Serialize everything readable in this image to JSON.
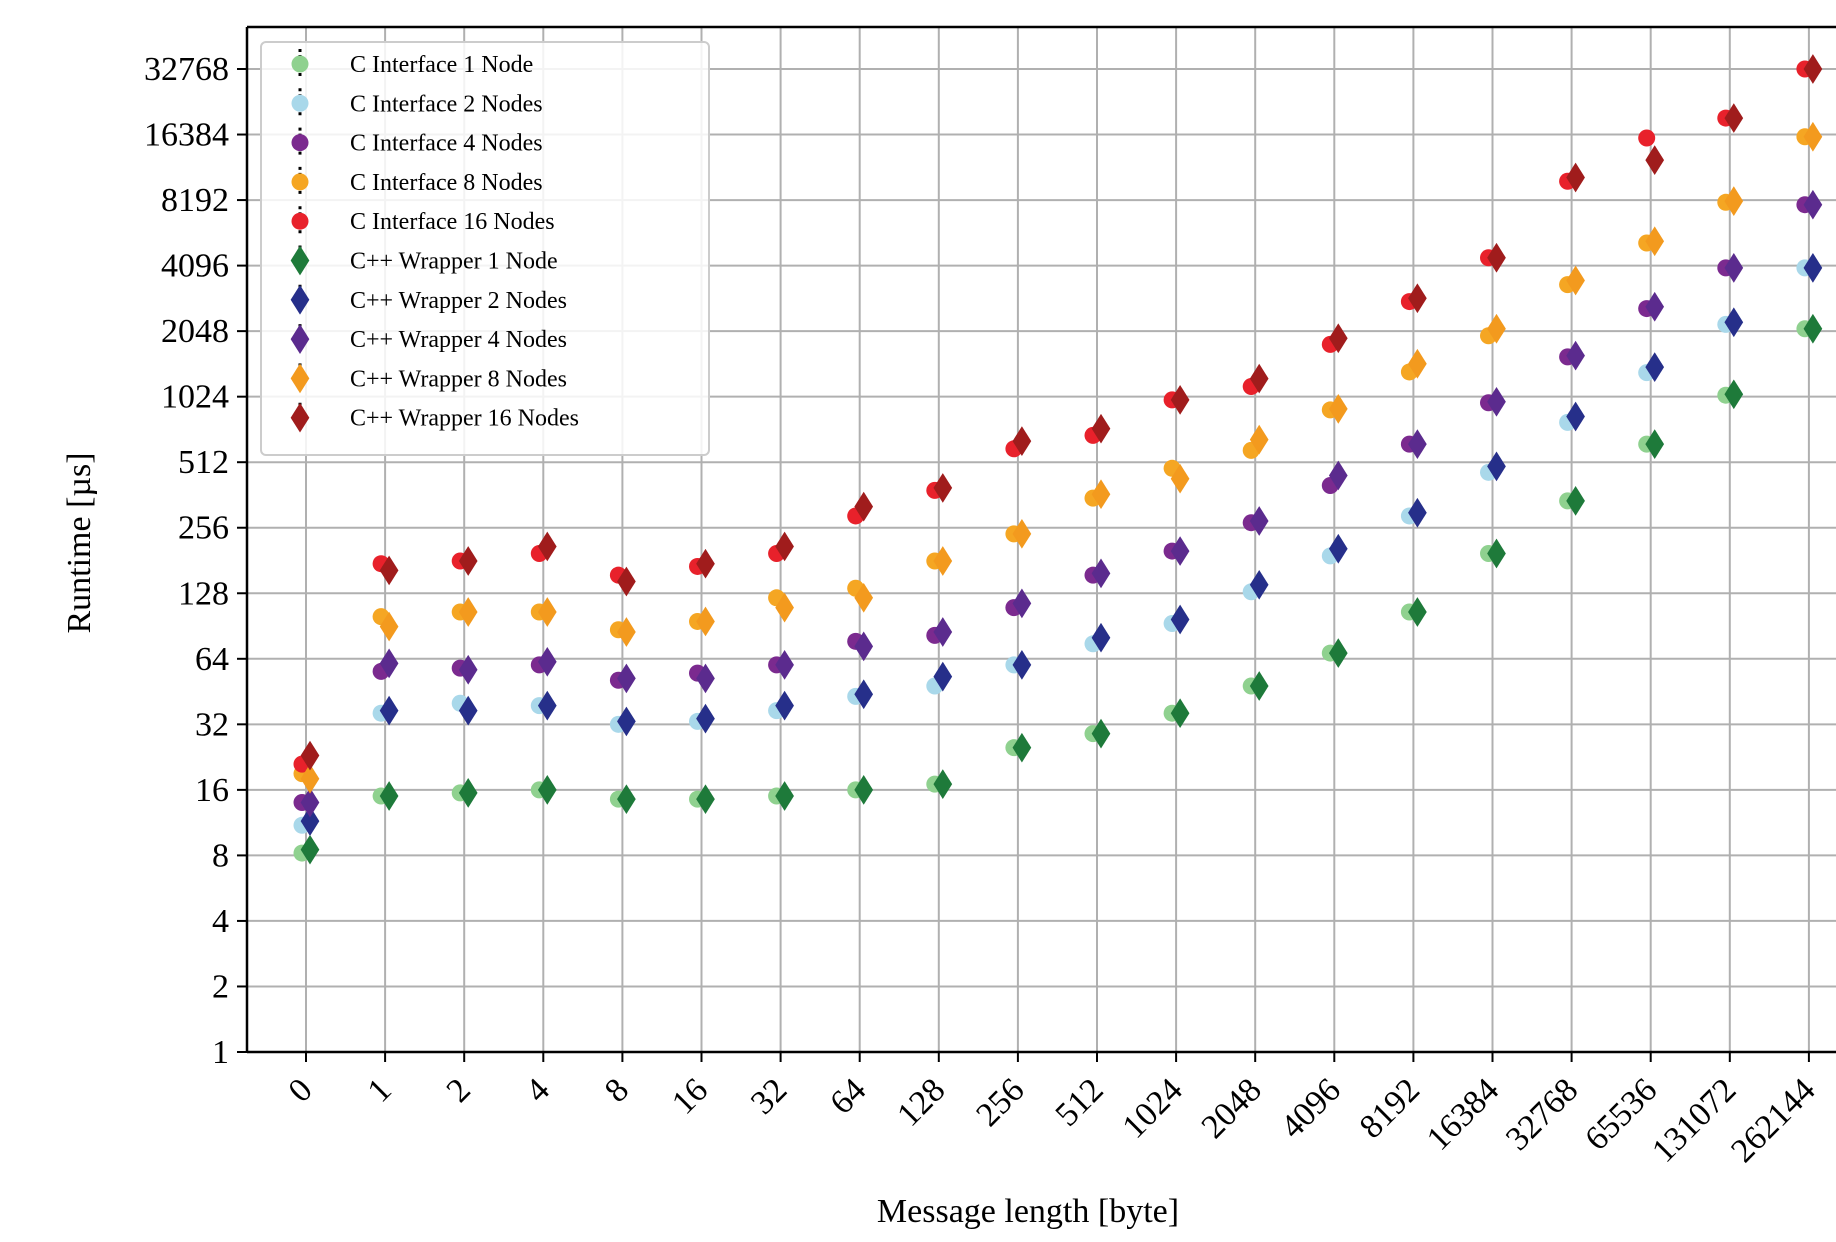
{
  "chart_data": {
    "type": "scatter",
    "xlabel": "Message length [byte]",
    "ylabel": "Runtime [µs]",
    "yscale": "log2",
    "ylim": [
      1,
      32768
    ],
    "grid": true,
    "legend_position": "top-left",
    "categories": [
      "0",
      "1",
      "2",
      "4",
      "8",
      "16",
      "32",
      "64",
      "128",
      "256",
      "512",
      "1024",
      "2048",
      "4096",
      "8192",
      "16384",
      "32768",
      "65536",
      "131072",
      "262144"
    ],
    "yticks": [
      1,
      2,
      4,
      8,
      16,
      32,
      64,
      128,
      256,
      512,
      1024,
      2048,
      4096,
      8192,
      16384,
      32768
    ],
    "series": [
      {
        "name": "C Interface 1 Node",
        "marker": "circle",
        "color": "#8fd18f",
        "values": [
          8.2,
          15,
          15.5,
          16,
          14.5,
          14.5,
          15,
          16,
          17,
          25,
          29,
          36,
          48,
          68,
          105,
          195,
          340,
          620,
          1040,
          2100
        ]
      },
      {
        "name": "C Interface 2 Nodes",
        "marker": "circle",
        "color": "#a9d8ea",
        "values": [
          11,
          36,
          40,
          39,
          32,
          33,
          37,
          43,
          48,
          60,
          75,
          93,
          130,
          190,
          290,
          460,
          780,
          1320,
          2200,
          4000
        ]
      },
      {
        "name": "C Interface 4 Nodes",
        "marker": "circle",
        "color": "#7b2a8f",
        "values": [
          14,
          56,
          58,
          60,
          51,
          55,
          60,
          77,
          82,
          110,
          155,
          200,
          270,
          400,
          620,
          960,
          1560,
          2600,
          4000,
          7800
        ]
      },
      {
        "name": "C Interface 8 Nodes",
        "marker": "circle",
        "color": "#f5a623",
        "values": [
          19,
          100,
          105,
          105,
          87,
          95,
          122,
          135,
          180,
          240,
          350,
          480,
          580,
          890,
          1330,
          1950,
          3350,
          5200,
          8000,
          16000
        ]
      },
      {
        "name": "C Interface 16 Nodes",
        "marker": "circle",
        "color": "#e8212b",
        "values": [
          21,
          175,
          180,
          195,
          155,
          170,
          195,
          290,
          380,
          590,
          680,
          990,
          1140,
          1780,
          2800,
          4450,
          10000,
          15800,
          19500,
          32768
        ]
      },
      {
        "name": "C++ Wrapper 1 Node",
        "marker": "diamond",
        "color": "#1e7a3a",
        "values": [
          8.5,
          15,
          15.5,
          16,
          14.5,
          14.5,
          15,
          16,
          17,
          25,
          29,
          36,
          48,
          68,
          105,
          195,
          340,
          620,
          1050,
          2100
        ]
      },
      {
        "name": "C++ Wrapper 2 Nodes",
        "marker": "diamond",
        "color": "#262f8a",
        "values": [
          11.5,
          37,
          37,
          39,
          33,
          34,
          39,
          44,
          53,
          60,
          80,
          97,
          140,
          205,
          300,
          490,
          830,
          1400,
          2250,
          4000
        ]
      },
      {
        "name": "C++ Wrapper 4 Nodes",
        "marker": "diamond",
        "color": "#5b2b8e",
        "values": [
          14,
          61,
          57,
          62,
          52,
          52,
          60,
          73,
          85,
          115,
          158,
          200,
          275,
          445,
          620,
          970,
          1580,
          2650,
          4000,
          7800
        ]
      },
      {
        "name": "C++ Wrapper 8 Nodes",
        "marker": "diamond",
        "color": "#f39a1e",
        "values": [
          18,
          90,
          105,
          105,
          85,
          95,
          110,
          122,
          180,
          240,
          365,
          430,
          650,
          900,
          1450,
          2100,
          3500,
          5300,
          8100,
          16000
        ]
      },
      {
        "name": "C++ Wrapper 16 Nodes",
        "marker": "diamond",
        "color": "#a01c1c",
        "values": [
          23,
          163,
          180,
          210,
          145,
          175,
          210,
          320,
          390,
          640,
          730,
          990,
          1240,
          1900,
          2900,
          4450,
          10400,
          12500,
          19500,
          32768
        ]
      }
    ]
  }
}
